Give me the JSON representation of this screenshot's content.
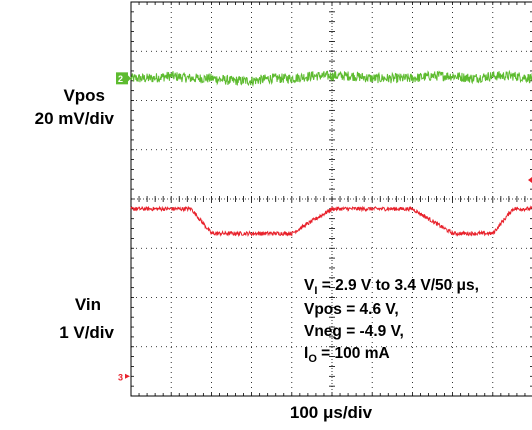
{
  "chart_data": {
    "type": "line",
    "time_scale_label": "100 μs/div",
    "grid": true,
    "channels": [
      {
        "id": "2",
        "name": "Vpos",
        "scale_label": "20 mV/div",
        "color": "#5dbb2f",
        "x_us": [
          0,
          50,
          100,
          150,
          200,
          250,
          300,
          350,
          400,
          450,
          500,
          550,
          600,
          650,
          700,
          750,
          800,
          850,
          900,
          950,
          1000
        ],
        "y_mv": [
          0,
          0,
          1,
          0,
          0,
          -1,
          -1,
          0,
          0,
          1,
          1,
          1,
          0,
          0,
          0,
          1,
          1,
          0,
          1,
          1,
          0
        ],
        "noise_mv": 2
      },
      {
        "id": "3",
        "name": "Vin",
        "scale_label": "1 V/div",
        "color": "#e8212b",
        "x_us": [
          0,
          100,
          150,
          200,
          300,
          400,
          500,
          550,
          600,
          700,
          800,
          900,
          950,
          1000
        ],
        "y_v": [
          3.4,
          3.4,
          3.4,
          2.9,
          2.9,
          2.9,
          3.4,
          3.4,
          3.4,
          3.4,
          2.9,
          2.9,
          3.4,
          3.4
        ],
        "noise_v": 0.04
      }
    ],
    "annotations": {
      "line1_pre": "V",
      "line1_sub": "I",
      "line1_post": " = 2.9 V to 3.4 V/50 μs,",
      "line2": "Vpos = 4.6 V,",
      "line3": "Vneg = -4.9 V,",
      "line4_pre": "I",
      "line4_sub": "O",
      "line4_post": " = 100 mA"
    }
  }
}
